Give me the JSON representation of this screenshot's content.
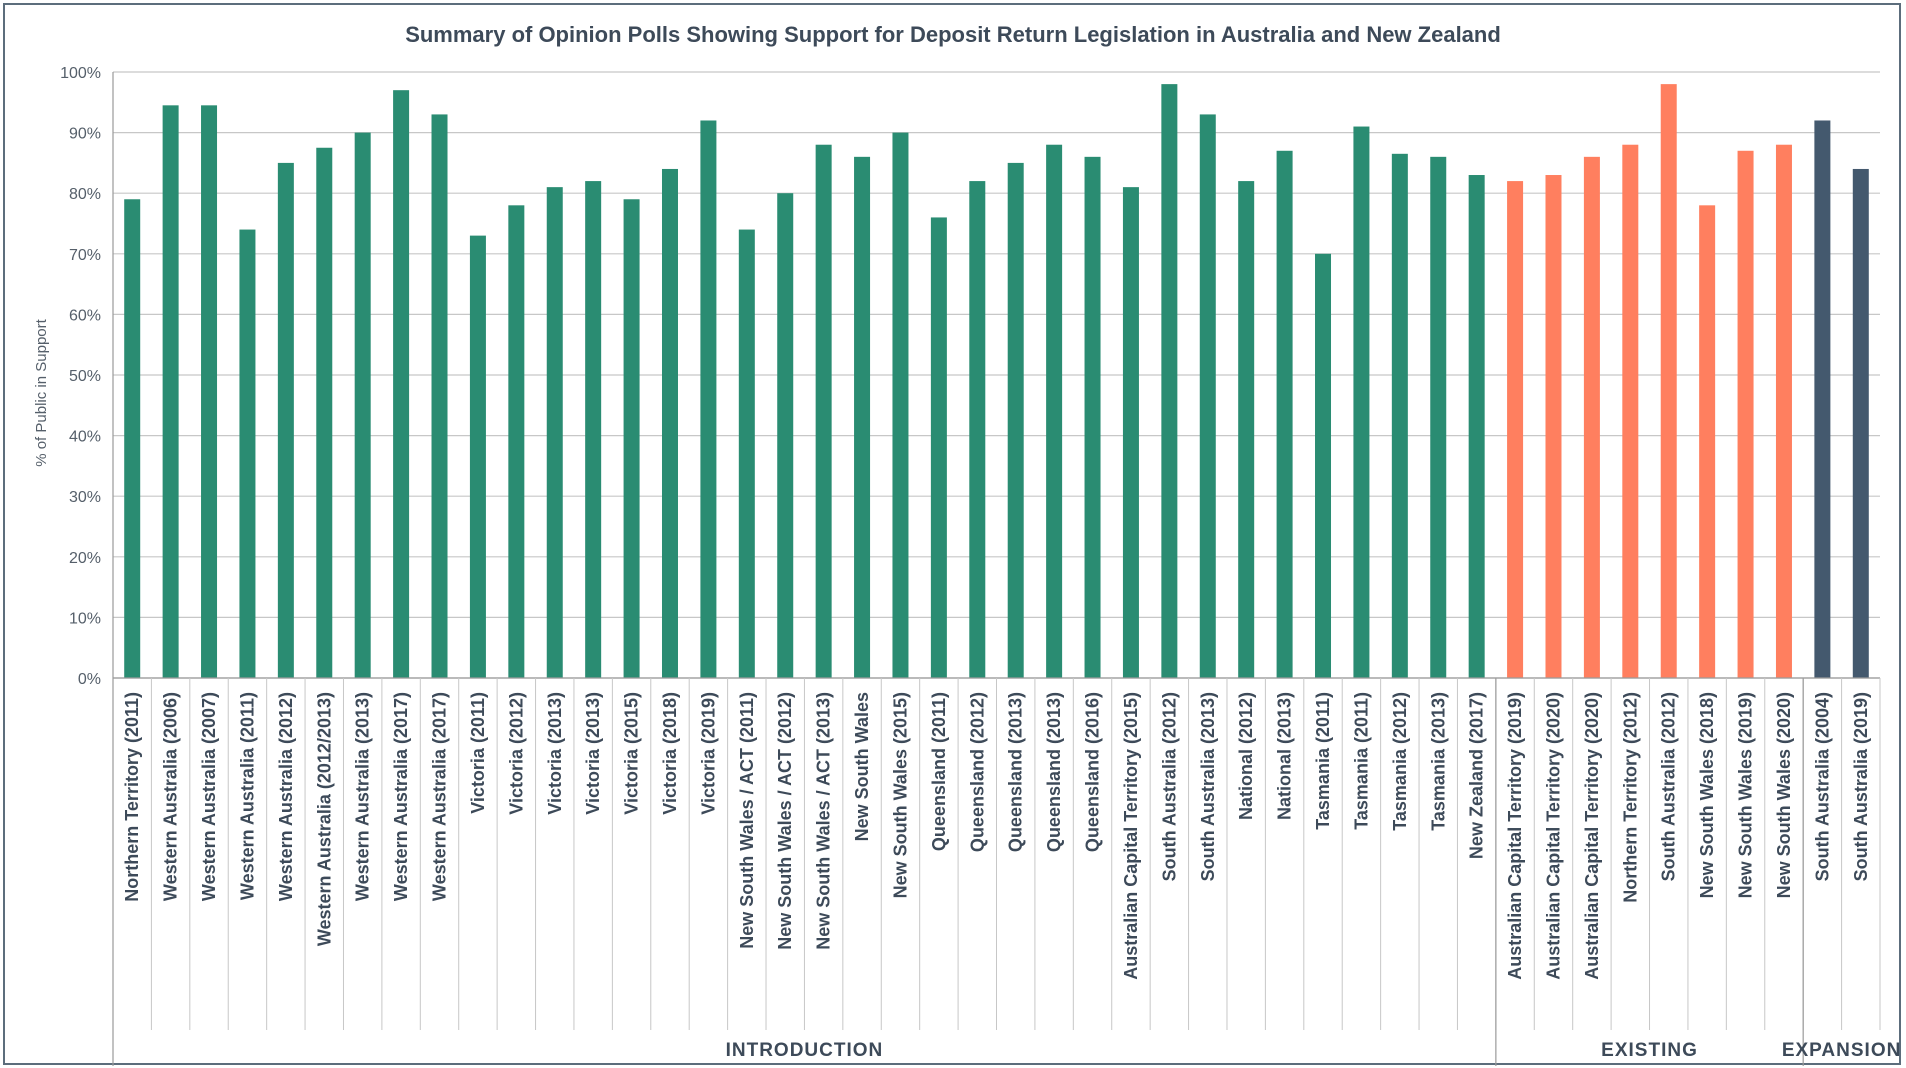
{
  "chart_data": {
    "type": "bar",
    "title": "Summary of Opinion Polls Showing Support for Deposit Return Legislation in Australia and New Zealand",
    "ylabel": "% of Public in Support",
    "xlabel": "",
    "ylim": [
      0,
      100
    ],
    "y_ticks": [
      "0%",
      "10%",
      "20%",
      "30%",
      "40%",
      "50%",
      "60%",
      "70%",
      "80%",
      "90%",
      "100%"
    ],
    "grid": true,
    "colors": {
      "INTRODUCTION": "#2a8c72",
      "EXISTING": "#ff7f5f",
      "EXPANSION": "#44596e"
    },
    "categories": [
      "Northern Territory (2011)",
      "Western Australia (2006)",
      "Western Australia (2007)",
      "Western Australia (2011)",
      "Western Australia (2012)",
      "Western Australia (2012/2013)",
      "Western Australia (2013)",
      "Western Australia (2017)",
      "Western Australia (2017)",
      "Victoria (2011)",
      "Victoria (2012)",
      "Victoria (2013)",
      "Victoria (2013)",
      "Victoria (2015)",
      "Victoria (2018)",
      "Victoria (2019)",
      "New South Wales / ACT (2011)",
      "New South Wales / ACT (2012)",
      "New South Wales / ACT (2013)",
      "New South Wales",
      "New South Wales (2015)",
      "Queensland (2011)",
      "Queensland (2012)",
      "Queensland (2013)",
      "Queensland (2013)",
      "Queensland (2016)",
      "Australian Capital Territory (2015)",
      "South Australia (2012)",
      "South Australia (2013)",
      "National (2012)",
      "National (2013)",
      "Tasmania (2011)",
      "Tasmania (2011)",
      "Tasmania (2012)",
      "Tasmania (2013)",
      "New Zealand (2017)",
      "Australian Capital Territory (2019)",
      "Australian Capital Territory (2020)",
      "Australian Capital Territory (2020)",
      "Northern Territory (2012)",
      "South Australia (2012)",
      "New South Wales (2018)",
      "New South Wales (2019)",
      "New South Wales (2020)",
      "South Australia (2004)",
      "South Australia (2019)"
    ],
    "values": [
      79,
      94.5,
      94.5,
      74,
      85,
      87.5,
      90,
      97,
      93,
      73,
      78,
      81,
      82,
      79,
      84,
      92,
      74,
      80,
      88,
      86,
      90,
      76,
      82,
      85,
      88,
      86,
      81,
      98,
      93,
      82,
      87,
      70,
      91,
      86.5,
      86,
      83,
      82,
      83,
      86,
      88,
      98,
      78,
      87,
      88,
      92,
      84
    ],
    "groups": [
      {
        "name": "INTRODUCTION",
        "start": 0,
        "end": 35
      },
      {
        "name": "EXISTING",
        "start": 36,
        "end": 43
      },
      {
        "name": "EXPANSION",
        "start": 44,
        "end": 45
      }
    ]
  }
}
